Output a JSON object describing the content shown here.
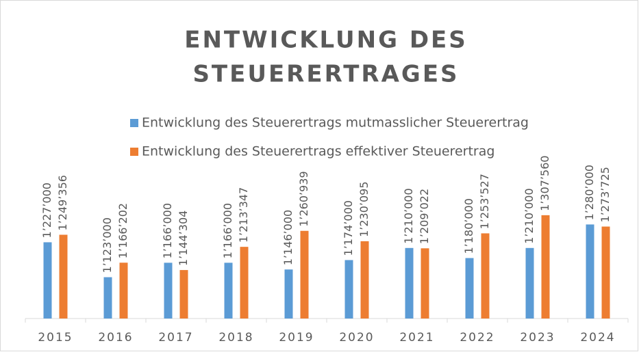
{
  "chart_data": {
    "type": "bar",
    "title": [
      "ENTWICKLUNG DES",
      "STEUERERTRAGES"
    ],
    "categories": [
      "2015",
      "2016",
      "2017",
      "2018",
      "2019",
      "2020",
      "2021",
      "2022",
      "2023",
      "2024"
    ],
    "series": [
      {
        "name": "Entwicklung des Steuerertrags mutmasslicher Steuerertrag",
        "color": "#5b9bd5",
        "values": [
          1227000,
          1123000,
          1166000,
          1166000,
          1146000,
          1174000,
          1210000,
          1180000,
          1210000,
          1280000
        ],
        "value_labels": [
          "1’227’000",
          "1’123’000",
          "1’166’000",
          "1’166’000",
          "1’146’000",
          "1’174’000",
          "1’210’000",
          "1’180’000",
          "1’210’000",
          "1’280’000"
        ]
      },
      {
        "name": "Entwicklung des Steuerertrags effektiver Steuerertrag",
        "color": "#ed7d31",
        "values": [
          1249356,
          1166202,
          1144304,
          1213347,
          1260939,
          1230095,
          1209022,
          1253527,
          1307560,
          1273725
        ],
        "value_labels": [
          "1’249’356",
          "1’166’202",
          "1’144’304",
          "1’213’347",
          "1’260’939",
          "1’230’095",
          "1’209’022",
          "1’253’527",
          "1’307’560",
          "1’273’725"
        ]
      }
    ],
    "ylim": [
      1000000,
      1350000
    ],
    "legend": "top"
  }
}
